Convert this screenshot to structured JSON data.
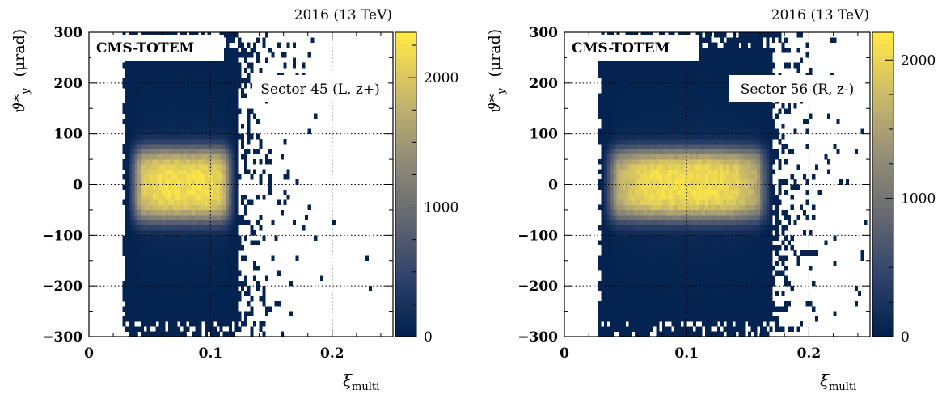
{
  "chart_data": [
    {
      "type": "heatmap",
      "energy_label": "2016 (13 TeV)",
      "experiment_label": "CMS-TOTEM",
      "sector_label": "Sector 45 (L, z+)",
      "xlabel_symbol": "ξ",
      "xlabel_sub": "multi",
      "ylabel_symbol": "ϑ*",
      "ylabel_sub": "y",
      "ylabel_unit": "(μrad)",
      "xlim": [
        0,
        0.25
      ],
      "ylim": [
        -300,
        300
      ],
      "x_ticks": [
        0,
        0.1,
        0.2
      ],
      "x_tick_labels": [
        "0",
        "0.1",
        "0.2"
      ],
      "y_ticks": [
        -300,
        -200,
        -100,
        0,
        100,
        200,
        300
      ],
      "y_tick_labels": [
        "−300",
        "−200",
        "−100",
        "0",
        "100",
        "200",
        "300"
      ],
      "z_range": [
        0,
        2350
      ],
      "z_ticks": [
        0,
        1000,
        2000
      ],
      "z_tick_labels": [
        "0",
        "1000",
        "2000"
      ],
      "grid": true,
      "colormap": [
        "#00204d",
        "#31446b",
        "#666970",
        "#958f78",
        "#cbba69",
        "#ffe945"
      ],
      "distribution": {
        "x_center": 0.078,
        "x_sigma": 0.022,
        "x_core_min": 0.031,
        "x_core_max": 0.122,
        "y_center": 0,
        "y_sigma": 62,
        "peak": 2350
      }
    },
    {
      "type": "heatmap",
      "energy_label": "2016 (13 TeV)",
      "experiment_label": "CMS-TOTEM",
      "sector_label": "Sector 56 (R, z-)",
      "xlabel_symbol": "ξ",
      "xlabel_sub": "multi",
      "ylabel_symbol": "ϑ*",
      "ylabel_sub": "y",
      "ylabel_unit": "(μrad)",
      "xlim": [
        0,
        0.25
      ],
      "ylim": [
        -300,
        300
      ],
      "x_ticks": [
        0,
        0.1,
        0.2
      ],
      "x_tick_labels": [
        "0",
        "0.1",
        "0.2"
      ],
      "y_ticks": [
        -300,
        -200,
        -100,
        0,
        100,
        200,
        300
      ],
      "y_tick_labels": [
        "−300",
        "−200",
        "−100",
        "0",
        "100",
        "200",
        "300"
      ],
      "z_range": [
        0,
        2200
      ],
      "z_ticks": [
        0,
        1000,
        2000
      ],
      "z_tick_labels": [
        "0",
        "1000",
        "2000"
      ],
      "grid": true,
      "colormap": [
        "#00204d",
        "#31446b",
        "#666970",
        "#958f78",
        "#cbba69",
        "#ffe945"
      ],
      "distribution": {
        "x_center": 0.1,
        "x_sigma": 0.03,
        "x_core_min": 0.031,
        "x_core_max": 0.17,
        "y_center": 0,
        "y_sigma": 60,
        "peak": 2200
      }
    }
  ]
}
